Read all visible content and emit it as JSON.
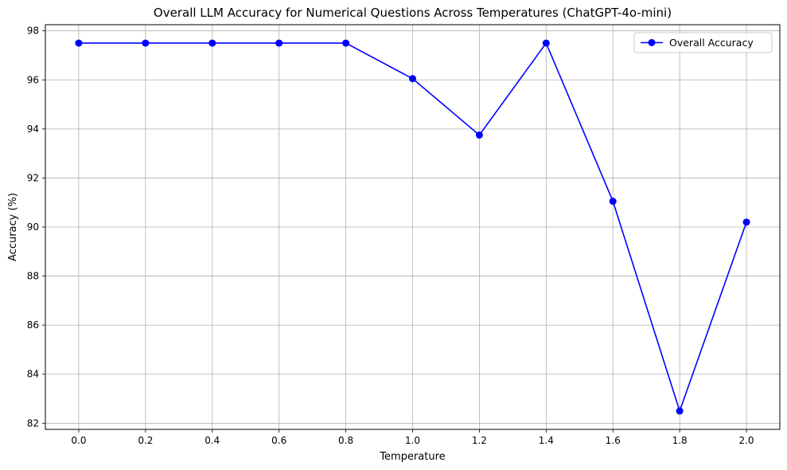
{
  "chart_data": {
    "type": "line",
    "title": "Overall LLM Accuracy for Numerical Questions Across Temperatures (ChatGPT-4o-mini)",
    "xlabel": "Temperature",
    "ylabel": "Accuracy (%)",
    "x": [
      0.0,
      0.2,
      0.4,
      0.6,
      0.8,
      1.0,
      1.2,
      1.4,
      1.6,
      1.8,
      2.0
    ],
    "x_tick_labels": [
      "0.0",
      "0.2",
      "0.4",
      "0.6",
      "0.8",
      "1.0",
      "1.2",
      "1.4",
      "1.6",
      "1.8",
      "2.0"
    ],
    "y_ticks": [
      82,
      84,
      86,
      88,
      90,
      92,
      94,
      96,
      98
    ],
    "y_tick_labels": [
      "82",
      "84",
      "86",
      "88",
      "90",
      "92",
      "94",
      "96",
      "98"
    ],
    "xlim": [
      -0.1,
      2.1
    ],
    "ylim": [
      81.75,
      98.25
    ],
    "grid": true,
    "legend_position": "top-right",
    "series": [
      {
        "name": "Overall Accuracy",
        "color": "#0000ff",
        "marker": "circle",
        "values": [
          97.5,
          97.5,
          97.5,
          97.5,
          97.5,
          96.05,
          93.75,
          97.5,
          91.05,
          82.5,
          90.2
        ]
      }
    ]
  }
}
